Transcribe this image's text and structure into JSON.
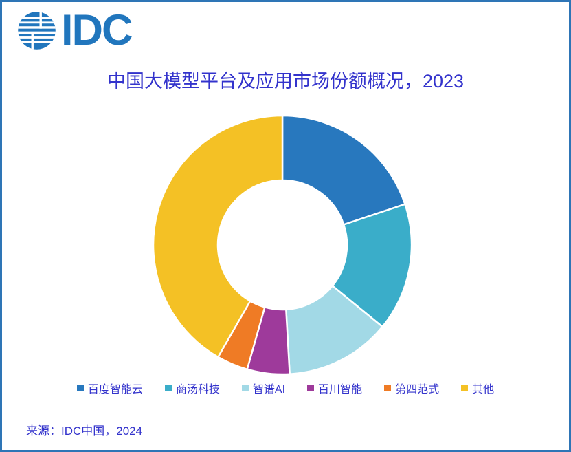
{
  "frame": {
    "border_color": "#2E75B6",
    "background": "#FFFFFF"
  },
  "logo": {
    "text": "IDC",
    "color": "#2176BD"
  },
  "text_color": "#3333CC",
  "source": {
    "text": "来源：IDC中国，2024"
  },
  "chart_data": {
    "type": "pie",
    "subtype": "donut",
    "title": "中国大模型平台及应用市场份额概况，2023",
    "inner_radius_ratio": 0.5,
    "start_angle": "top",
    "direction": "clockwise",
    "legend_position": "bottom",
    "data_labels_shown": false,
    "values_unit": "% market share (estimated from arc angles)",
    "series": [
      {
        "name": "百度智能云",
        "value": 19.9,
        "color": "#2878BE"
      },
      {
        "name": "商汤科技",
        "value": 16.0,
        "color": "#3AADC9"
      },
      {
        "name": "智谱AI",
        "value": 13.2,
        "color": "#A2D9E6"
      },
      {
        "name": "百川智能",
        "value": 5.3,
        "color": "#9E3A9B"
      },
      {
        "name": "第四范式",
        "value": 3.9,
        "color": "#EF7B25"
      },
      {
        "name": "其他",
        "value": 41.7,
        "color": "#F4C125"
      }
    ]
  }
}
